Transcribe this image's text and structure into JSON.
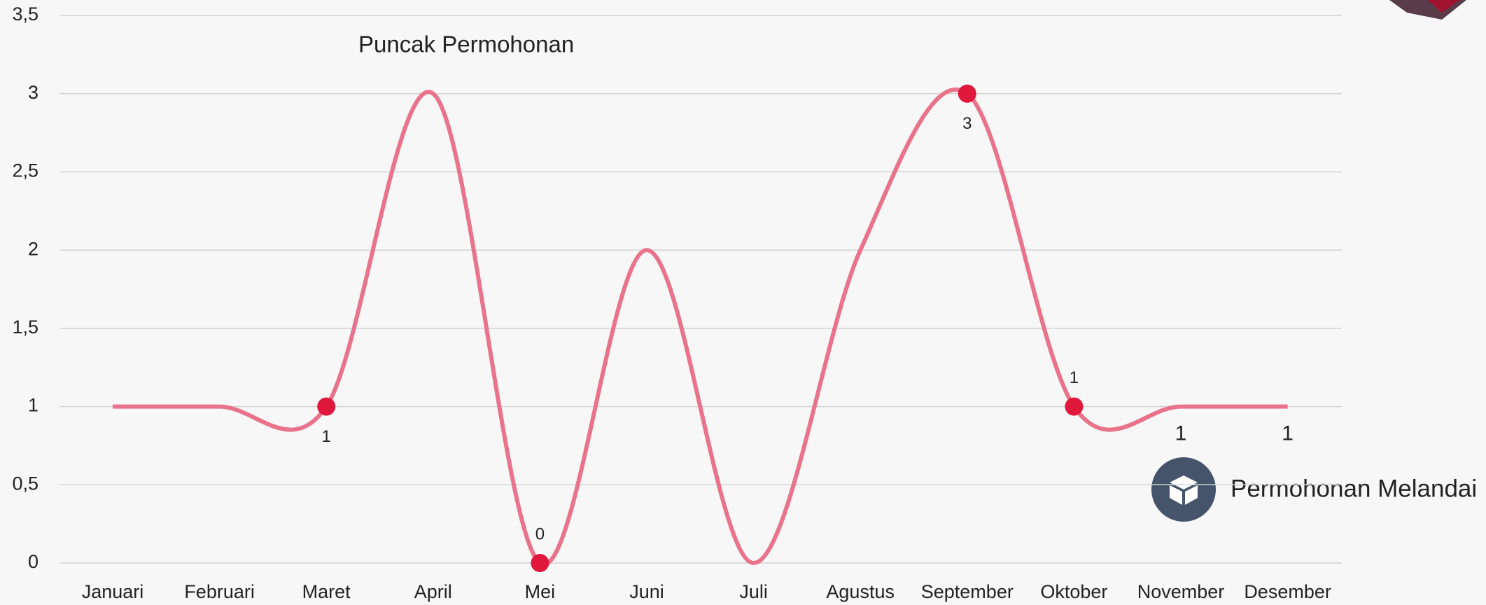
{
  "chart_data": {
    "type": "line",
    "annotations": [
      "Puncak Permohonan",
      "Permohonan Melandai"
    ],
    "categories": [
      "Januari",
      "Februari",
      "Maret",
      "April",
      "Mei",
      "Juni",
      "Juli",
      "Agustus",
      "September",
      "Oktober",
      "November",
      "Desember"
    ],
    "values": [
      1,
      1,
      1,
      3,
      0,
      2,
      0,
      2,
      3,
      1,
      1,
      1
    ],
    "markers": [
      false,
      false,
      true,
      false,
      true,
      false,
      false,
      false,
      true,
      true,
      false,
      false
    ],
    "labels": [
      false,
      false,
      true,
      false,
      true,
      false,
      false,
      false,
      true,
      true,
      true,
      true
    ],
    "color": "#e8738a",
    "marker_color": "#e0193c",
    "smooth": true,
    "ylim": [
      0,
      3.5
    ],
    "yticks": [
      0,
      {
        "value": 0.5,
        "label": "0,5"
      },
      1,
      {
        "value": 1.5,
        "label": "1,5"
      },
      2,
      {
        "value": 2.5,
        "label": "2,5"
      },
      3,
      {
        "value": 3.5,
        "label": "3,5"
      }
    ],
    "grid": true
  }
}
